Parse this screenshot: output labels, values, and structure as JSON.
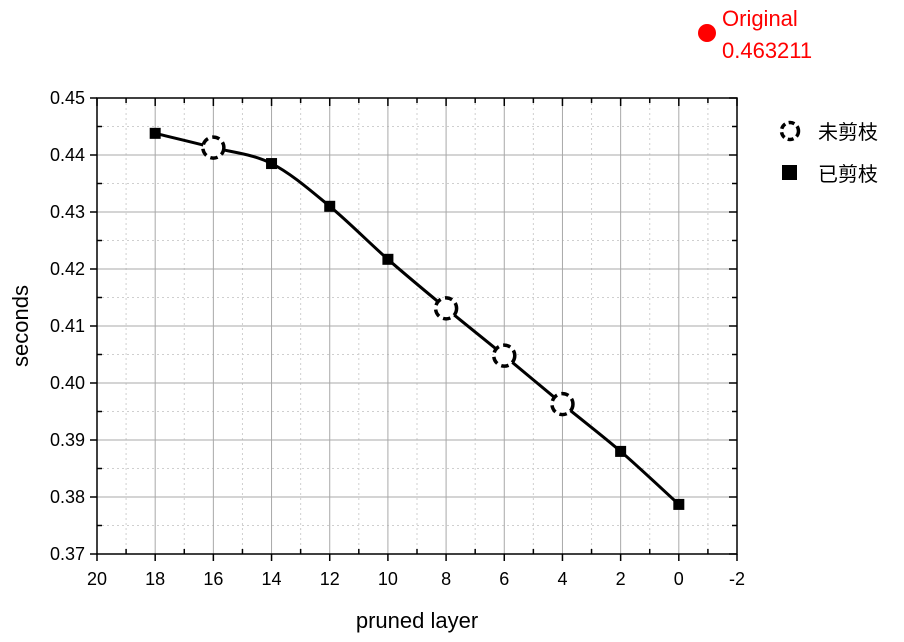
{
  "chart_data": {
    "type": "line",
    "xlabel": "pruned layer",
    "ylabel": "seconds",
    "xlim": [
      20,
      -2
    ],
    "ylim": [
      0.37,
      0.45
    ],
    "x_ticks": [
      20,
      18,
      16,
      14,
      12,
      10,
      8,
      6,
      4,
      2,
      0,
      -2
    ],
    "x_tick_labels": [
      "20",
      "18",
      "16",
      "14",
      "12",
      "10",
      "8",
      "6",
      "4",
      "2",
      "0",
      "-2"
    ],
    "y_ticks": [
      0.37,
      0.38,
      0.39,
      0.4,
      0.41,
      0.42,
      0.43,
      0.44,
      0.45
    ],
    "y_tick_labels": [
      "0.37",
      "0.38",
      "0.39",
      "0.40",
      "0.41",
      "0.42",
      "0.43",
      "0.44",
      "0.45"
    ],
    "grid": true,
    "legend_position": "right",
    "series": [
      {
        "x": [
          18,
          16,
          14,
          12,
          10,
          8,
          6,
          4,
          2,
          0
        ],
        "values": [
          0.4438,
          0.4413,
          0.4385,
          0.431,
          0.4217,
          0.4131,
          0.4048,
          0.3963,
          0.388,
          0.3787
        ],
        "pruned": [
          true,
          false,
          true,
          true,
          true,
          false,
          false,
          false,
          true,
          true
        ],
        "color": "#000000"
      }
    ],
    "legend": [
      {
        "marker": "dashed-circle",
        "label": "未剪枝"
      },
      {
        "marker": "filled-square",
        "label": "已剪枝"
      }
    ],
    "reference": {
      "label": "Original",
      "value": "0.463211",
      "color": "#ff0000"
    }
  }
}
